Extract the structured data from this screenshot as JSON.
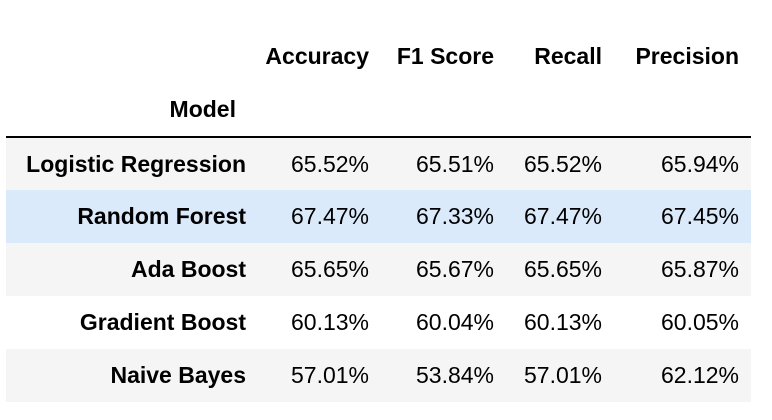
{
  "table": {
    "columns": [
      "Accuracy",
      "F1 Score",
      "Recall",
      "Precision"
    ],
    "index_name": "Model",
    "rows": [
      {
        "model": "Logistic Regression",
        "values": [
          "65.52%",
          "65.51%",
          "65.52%",
          "65.94%"
        ]
      },
      {
        "model": "Random Forest",
        "values": [
          "67.47%",
          "67.33%",
          "67.47%",
          "67.45%"
        ]
      },
      {
        "model": "Ada Boost",
        "values": [
          "65.65%",
          "65.67%",
          "65.65%",
          "65.87%"
        ]
      },
      {
        "model": "Gradient Boost",
        "values": [
          "60.13%",
          "60.04%",
          "60.13%",
          "60.05%"
        ]
      },
      {
        "model": "Naive Bayes",
        "values": [
          "57.01%",
          "53.84%",
          "57.01%",
          "62.12%"
        ]
      }
    ],
    "highlighted_row": "Random Forest"
  },
  "colors": {
    "row_stripe": "#f5f5f5",
    "row_hover": "#dbeafa",
    "header_rule": "#000000"
  }
}
